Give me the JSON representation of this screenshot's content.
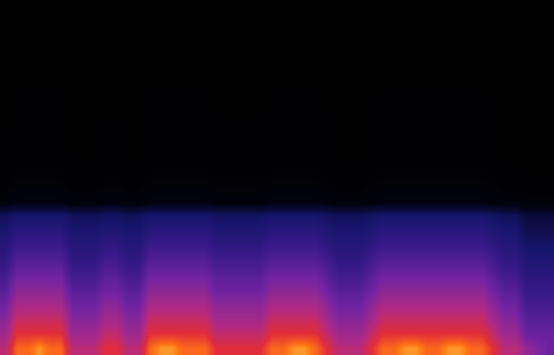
{
  "chart_data": {
    "type": "heatmap",
    "tick_labels": false,
    "zlim": [
      0,
      100
    ],
    "z": [
      [
        72,
        88,
        88,
        93,
        88,
        88,
        72,
        72,
        72,
        80,
        80,
        72,
        72,
        88,
        93,
        93,
        88,
        88,
        88,
        80,
        80,
        80,
        80,
        80,
        88,
        88,
        93,
        93,
        88,
        80,
        72,
        72,
        72,
        80,
        88,
        88,
        93,
        93,
        88,
        88,
        93,
        93,
        88,
        88,
        80,
        72,
        72,
        64,
        60,
        56
      ],
      [
        66,
        80,
        80,
        80,
        80,
        80,
        66,
        66,
        66,
        73,
        73,
        66,
        66,
        80,
        80,
        80,
        80,
        80,
        80,
        73,
        73,
        73,
        73,
        73,
        80,
        80,
        80,
        80,
        80,
        73,
        66,
        66,
        66,
        73,
        80,
        80,
        80,
        80,
        80,
        80,
        80,
        80,
        80,
        80,
        73,
        66,
        66,
        55,
        55,
        55
      ],
      [
        61,
        74,
        74,
        74,
        74,
        74,
        61,
        61,
        61,
        67,
        67,
        61,
        61,
        74,
        74,
        74,
        74,
        74,
        74,
        67,
        67,
        67,
        67,
        67,
        74,
        74,
        74,
        74,
        74,
        67,
        61,
        61,
        61,
        67,
        74,
        74,
        74,
        74,
        74,
        74,
        74,
        74,
        74,
        74,
        67,
        61,
        61,
        51,
        51,
        51
      ],
      [
        56,
        68,
        68,
        68,
        68,
        68,
        56,
        56,
        56,
        62,
        62,
        56,
        56,
        68,
        68,
        68,
        68,
        68,
        68,
        62,
        62,
        62,
        62,
        62,
        68,
        68,
        68,
        68,
        68,
        62,
        56,
        56,
        56,
        62,
        68,
        68,
        68,
        68,
        68,
        68,
        68,
        68,
        68,
        68,
        62,
        56,
        56,
        47,
        47,
        47
      ],
      [
        51,
        62,
        62,
        62,
        62,
        62,
        51,
        51,
        51,
        56,
        56,
        51,
        51,
        62,
        62,
        62,
        62,
        62,
        62,
        56,
        56,
        56,
        56,
        56,
        62,
        62,
        62,
        62,
        62,
        56,
        51,
        51,
        51,
        56,
        62,
        62,
        62,
        62,
        62,
        62,
        62,
        62,
        62,
        62,
        56,
        51,
        51,
        43,
        43,
        43
      ],
      [
        46,
        56,
        56,
        56,
        56,
        56,
        46,
        46,
        46,
        51,
        51,
        46,
        46,
        56,
        56,
        56,
        56,
        56,
        56,
        51,
        51,
        51,
        51,
        51,
        56,
        56,
        56,
        56,
        56,
        51,
        46,
        46,
        46,
        51,
        56,
        56,
        56,
        56,
        56,
        56,
        56,
        56,
        56,
        56,
        51,
        46,
        46,
        39,
        39,
        39
      ],
      [
        41,
        50,
        50,
        50,
        50,
        50,
        41,
        41,
        41,
        46,
        46,
        41,
        41,
        50,
        50,
        50,
        50,
        50,
        50,
        46,
        46,
        46,
        46,
        46,
        50,
        50,
        50,
        50,
        50,
        46,
        41,
        41,
        41,
        46,
        50,
        50,
        50,
        50,
        50,
        50,
        50,
        50,
        50,
        50,
        46,
        41,
        41,
        35,
        35,
        35
      ],
      [
        37,
        44,
        44,
        44,
        44,
        44,
        37,
        37,
        37,
        40,
        40,
        37,
        37,
        44,
        44,
        44,
        44,
        44,
        44,
        40,
        40,
        40,
        40,
        40,
        44,
        44,
        44,
        44,
        44,
        40,
        37,
        37,
        37,
        40,
        44,
        44,
        44,
        44,
        44,
        44,
        44,
        44,
        44,
        44,
        40,
        37,
        37,
        31,
        31,
        31
      ],
      [
        33,
        38,
        38,
        38,
        38,
        38,
        33,
        33,
        33,
        35,
        35,
        33,
        33,
        38,
        38,
        38,
        38,
        38,
        38,
        35,
        35,
        35,
        35,
        35,
        38,
        38,
        38,
        38,
        38,
        35,
        33,
        33,
        33,
        35,
        38,
        38,
        38,
        38,
        38,
        38,
        38,
        38,
        38,
        38,
        35,
        33,
        33,
        28,
        28,
        28
      ],
      [
        29,
        32,
        32,
        32,
        32,
        32,
        29,
        29,
        29,
        30,
        30,
        29,
        29,
        32,
        32,
        32,
        32,
        32,
        32,
        30,
        30,
        30,
        30,
        30,
        32,
        32,
        32,
        32,
        32,
        30,
        29,
        29,
        29,
        30,
        32,
        32,
        32,
        32,
        32,
        32,
        32,
        32,
        32,
        32,
        30,
        29,
        29,
        24,
        24,
        24
      ],
      [
        8,
        12,
        12,
        12,
        12,
        12,
        8,
        8,
        8,
        10,
        10,
        8,
        8,
        12,
        12,
        12,
        12,
        12,
        12,
        10,
        10,
        10,
        10,
        10,
        12,
        12,
        12,
        12,
        12,
        10,
        8,
        8,
        8,
        10,
        12,
        12,
        12,
        12,
        12,
        12,
        12,
        12,
        12,
        12,
        10,
        8,
        8,
        5,
        5,
        5
      ],
      [
        3,
        6,
        6,
        6,
        6,
        6,
        3,
        3,
        3,
        5,
        5,
        3,
        3,
        6,
        6,
        6,
        6,
        6,
        6,
        5,
        5,
        5,
        5,
        5,
        6,
        6,
        6,
        6,
        6,
        5,
        3,
        3,
        3,
        5,
        6,
        6,
        6,
        6,
        6,
        6,
        6,
        6,
        6,
        6,
        5,
        3,
        3,
        2,
        2,
        2
      ],
      [
        2,
        4,
        4,
        4,
        4,
        4,
        2,
        2,
        2,
        3,
        3,
        2,
        2,
        4,
        4,
        4,
        4,
        4,
        4,
        3,
        3,
        3,
        3,
        3,
        4,
        4,
        4,
        4,
        4,
        3,
        2,
        2,
        2,
        3,
        4,
        4,
        4,
        4,
        4,
        4,
        4,
        4,
        4,
        4,
        3,
        2,
        2,
        1,
        1,
        1
      ],
      [
        1,
        3,
        3,
        3,
        3,
        3,
        1,
        1,
        1,
        2,
        2,
        1,
        1,
        3,
        3,
        3,
        3,
        3,
        3,
        2,
        2,
        2,
        2,
        2,
        3,
        3,
        3,
        3,
        3,
        2,
        1,
        1,
        1,
        2,
        3,
        3,
        3,
        3,
        3,
        3,
        3,
        3,
        3,
        3,
        2,
        1,
        1,
        0,
        0,
        0
      ],
      [
        1,
        3,
        3,
        3,
        3,
        3,
        1,
        1,
        1,
        2,
        2,
        1,
        1,
        3,
        3,
        3,
        3,
        3,
        3,
        2,
        2,
        2,
        2,
        2,
        3,
        3,
        3,
        3,
        3,
        2,
        1,
        1,
        1,
        2,
        3,
        3,
        3,
        3,
        3,
        3,
        3,
        3,
        3,
        3,
        2,
        1,
        1,
        0,
        0,
        0
      ],
      [
        1,
        3,
        3,
        3,
        3,
        3,
        1,
        1,
        1,
        2,
        2,
        1,
        1,
        3,
        3,
        3,
        3,
        3,
        3,
        2,
        2,
        2,
        2,
        2,
        3,
        3,
        3,
        3,
        3,
        2,
        1,
        1,
        1,
        2,
        3,
        3,
        3,
        3,
        3,
        3,
        3,
        3,
        3,
        3,
        2,
        1,
        1,
        0,
        0,
        0
      ],
      [
        0,
        2,
        2,
        2,
        2,
        2,
        0,
        0,
        0,
        1,
        1,
        0,
        0,
        2,
        2,
        2,
        2,
        2,
        2,
        1,
        1,
        1,
        1,
        1,
        2,
        2,
        2,
        2,
        2,
        1,
        0,
        0,
        0,
        1,
        2,
        2,
        2,
        2,
        2,
        2,
        2,
        2,
        2,
        2,
        1,
        0,
        0,
        0,
        0,
        0
      ],
      [
        0,
        2,
        2,
        2,
        2,
        2,
        0,
        0,
        0,
        1,
        1,
        0,
        0,
        2,
        2,
        2,
        2,
        2,
        2,
        1,
        1,
        1,
        1,
        1,
        2,
        2,
        2,
        2,
        2,
        1,
        0,
        0,
        0,
        1,
        2,
        2,
        2,
        2,
        2,
        2,
        2,
        2,
        2,
        2,
        1,
        0,
        0,
        0,
        0,
        0
      ],
      [
        0,
        1,
        1,
        1,
        1,
        1,
        0,
        0,
        0,
        0,
        0,
        0,
        0,
        1,
        1,
        1,
        1,
        1,
        1,
        0,
        0,
        0,
        0,
        0,
        1,
        1,
        1,
        1,
        1,
        0,
        0,
        0,
        0,
        0,
        1,
        1,
        1,
        1,
        1,
        1,
        1,
        1,
        1,
        1,
        0,
        0,
        0,
        0,
        0,
        0
      ],
      [
        0,
        0,
        0,
        0,
        0,
        0,
        0,
        0,
        0,
        0,
        0,
        0,
        0,
        0,
        0,
        0,
        0,
        0,
        0,
        0,
        0,
        0,
        0,
        0,
        0,
        0,
        0,
        0,
        0,
        0,
        0,
        0,
        0,
        0,
        0,
        0,
        0,
        0,
        0,
        0,
        0,
        0,
        0,
        0,
        0,
        0,
        0,
        0,
        0,
        0
      ],
      [
        0,
        0,
        0,
        0,
        0,
        0,
        0,
        0,
        0,
        0,
        0,
        0,
        0,
        0,
        0,
        0,
        0,
        0,
        0,
        0,
        0,
        0,
        0,
        0,
        0,
        0,
        0,
        0,
        0,
        0,
        0,
        0,
        0,
        0,
        0,
        0,
        0,
        0,
        0,
        0,
        0,
        0,
        0,
        0,
        0,
        0,
        0,
        0,
        0,
        0
      ],
      [
        0,
        0,
        0,
        0,
        0,
        0,
        0,
        0,
        0,
        0,
        0,
        0,
        0,
        0,
        0,
        0,
        0,
        0,
        0,
        0,
        0,
        0,
        0,
        0,
        0,
        0,
        0,
        0,
        0,
        0,
        0,
        0,
        0,
        0,
        0,
        0,
        0,
        0,
        0,
        0,
        0,
        0,
        0,
        0,
        0,
        0,
        0,
        0,
        0,
        0
      ],
      [
        0,
        0,
        0,
        0,
        0,
        0,
        0,
        0,
        0,
        0,
        0,
        0,
        0,
        0,
        0,
        0,
        0,
        0,
        0,
        0,
        0,
        0,
        0,
        0,
        0,
        0,
        0,
        0,
        0,
        0,
        0,
        0,
        0,
        0,
        0,
        0,
        0,
        0,
        0,
        0,
        0,
        0,
        0,
        0,
        0,
        0,
        0,
        0,
        0,
        0
      ],
      [
        0,
        0,
        0,
        0,
        0,
        0,
        0,
        0,
        0,
        0,
        0,
        0,
        0,
        0,
        0,
        0,
        0,
        0,
        0,
        0,
        0,
        0,
        0,
        0,
        0,
        0,
        0,
        0,
        0,
        0,
        0,
        0,
        0,
        0,
        0,
        0,
        0,
        0,
        0,
        0,
        0,
        0,
        0,
        0,
        0,
        0,
        0,
        0,
        0,
        0
      ]
    ]
  }
}
